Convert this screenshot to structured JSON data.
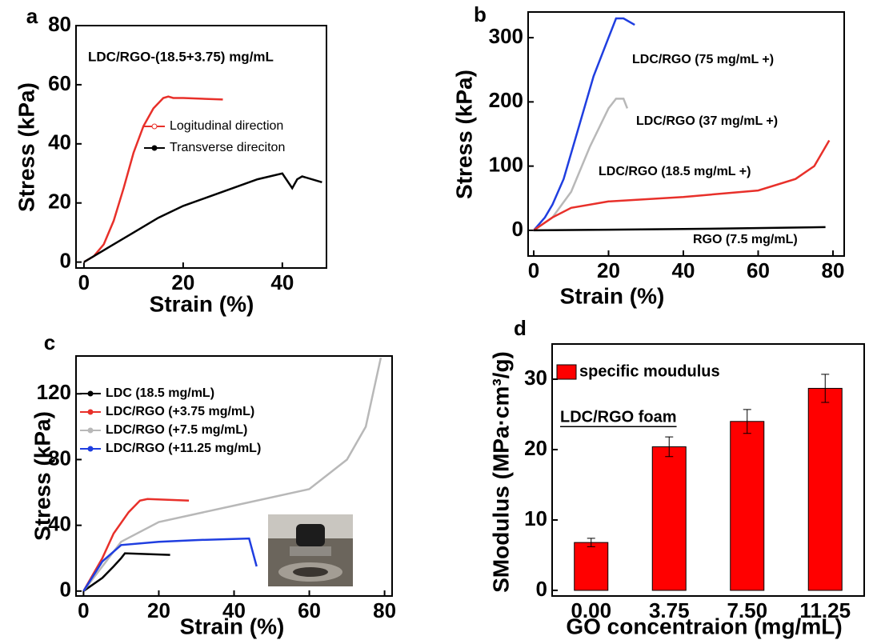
{
  "chart_data": [
    {
      "type": "line",
      "panel": "a",
      "annotation": "LDC/RGO-(18.5+3.75) mg/mL",
      "x_label": "Strain (%)",
      "y_label": "Stress (kPa)",
      "xlim": [
        -1.6,
        48.9
      ],
      "ylim": [
        -2,
        80
      ],
      "xticks": [
        0,
        20,
        40
      ],
      "yticks": [
        0,
        20,
        40,
        60,
        80
      ],
      "series": [
        {
          "name": "Logitudinal direction",
          "color": "#e8302a",
          "x": [
            0,
            2,
            4,
            6,
            8,
            10,
            12,
            14,
            16,
            17,
            18,
            20,
            28
          ],
          "values": [
            0,
            2,
            6,
            14,
            25,
            37,
            46,
            52,
            55.5,
            56,
            55.5,
            55.5,
            55
          ]
        },
        {
          "name": "Transverse direciton",
          "color": "#000000",
          "x": [
            0,
            5,
            10,
            15,
            20,
            25,
            30,
            35,
            40,
            42,
            43,
            44,
            48
          ],
          "values": [
            0,
            5,
            10,
            15,
            19,
            22,
            25,
            28,
            30,
            25,
            28,
            29,
            27
          ]
        }
      ]
    },
    {
      "type": "line",
      "panel": "b",
      "x_label": "Strain (%)",
      "y_label": "Stress (kPa)",
      "xlim": [
        -1.5,
        83
      ],
      "ylim": [
        -40,
        340
      ],
      "xticks": [
        0,
        20,
        40,
        60,
        80
      ],
      "yticks": [
        0,
        100,
        200,
        300
      ],
      "series": [
        {
          "name": "LDC/RGO (75 mg/mL +)",
          "color": "#1f3ee0",
          "x": [
            0,
            3,
            5,
            8,
            12,
            16,
            20,
            22,
            24,
            27
          ],
          "values": [
            0,
            20,
            40,
            80,
            160,
            240,
            300,
            330,
            330,
            320
          ]
        },
        {
          "name": "LDC/RGO (37 mg/mL +)",
          "color": "#b8b8b8",
          "x": [
            0,
            5,
            10,
            15,
            20,
            22,
            24,
            25
          ],
          "values": [
            0,
            20,
            60,
            130,
            190,
            205,
            205,
            190
          ]
        },
        {
          "name": "LDC/RGO (18.5 mg/mL +)",
          "color": "#e8302a",
          "x": [
            0,
            5,
            10,
            20,
            40,
            60,
            70,
            75,
            79
          ],
          "values": [
            0,
            20,
            35,
            45,
            52,
            62,
            80,
            100,
            140
          ]
        },
        {
          "name": "RGO (7.5 mg/mL)",
          "color": "#000000",
          "x": [
            0,
            40,
            78
          ],
          "values": [
            0,
            2,
            5
          ]
        }
      ]
    },
    {
      "type": "line",
      "panel": "c",
      "x_label": "Strain (%)",
      "y_label": "Stress (kPa)",
      "xlim": [
        -2,
        82
      ],
      "ylim": [
        -3,
        143
      ],
      "xticks": [
        0,
        20,
        40,
        60,
        80
      ],
      "yticks": [
        0,
        40,
        80,
        120
      ],
      "series": [
        {
          "name": "LDC (18.5 mg/mL)",
          "color": "#000000",
          "x": [
            0,
            5,
            8,
            10,
            11,
            23
          ],
          "values": [
            0,
            8,
            15,
            20,
            23,
            22
          ]
        },
        {
          "name": "LDC/RGO (+3.75 mg/mL)",
          "color": "#e8302a",
          "x": [
            0,
            5,
            8,
            12,
            15,
            17,
            28
          ],
          "values": [
            0,
            20,
            35,
            48,
            55,
            56,
            55
          ]
        },
        {
          "name": "LDC/RGO (+7.5 mg/mL)",
          "color": "#b8b8b8",
          "x": [
            0,
            5,
            10,
            20,
            40,
            60,
            70,
            75,
            79
          ],
          "values": [
            0,
            15,
            30,
            42,
            52,
            62,
            80,
            100,
            142
          ]
        },
        {
          "name": "LDC/RGO (+11.25 mg/mL)",
          "color": "#1f3ee0",
          "x": [
            0,
            5,
            10,
            20,
            30,
            44,
            46
          ],
          "values": [
            0,
            18,
            28,
            30,
            31,
            32,
            15
          ]
        }
      ]
    },
    {
      "type": "bar",
      "panel": "d",
      "annotation": "LDC/RGO foam",
      "x_label": "GO concentraion (mg/mL)",
      "y_label": "SModulus (MPa·cm³/g)",
      "categories": [
        "0.00",
        "3.75",
        "7.50",
        "11.25"
      ],
      "series": [
        {
          "name": "specific moudulus",
          "color": "#ff0000",
          "values": [
            6.8,
            20.4,
            24,
            28.7
          ],
          "errors": [
            0.6,
            1.4,
            1.7,
            2
          ]
        }
      ],
      "ylim": [
        -0.8,
        35
      ],
      "yticks": [
        0,
        10,
        20,
        30
      ]
    }
  ]
}
